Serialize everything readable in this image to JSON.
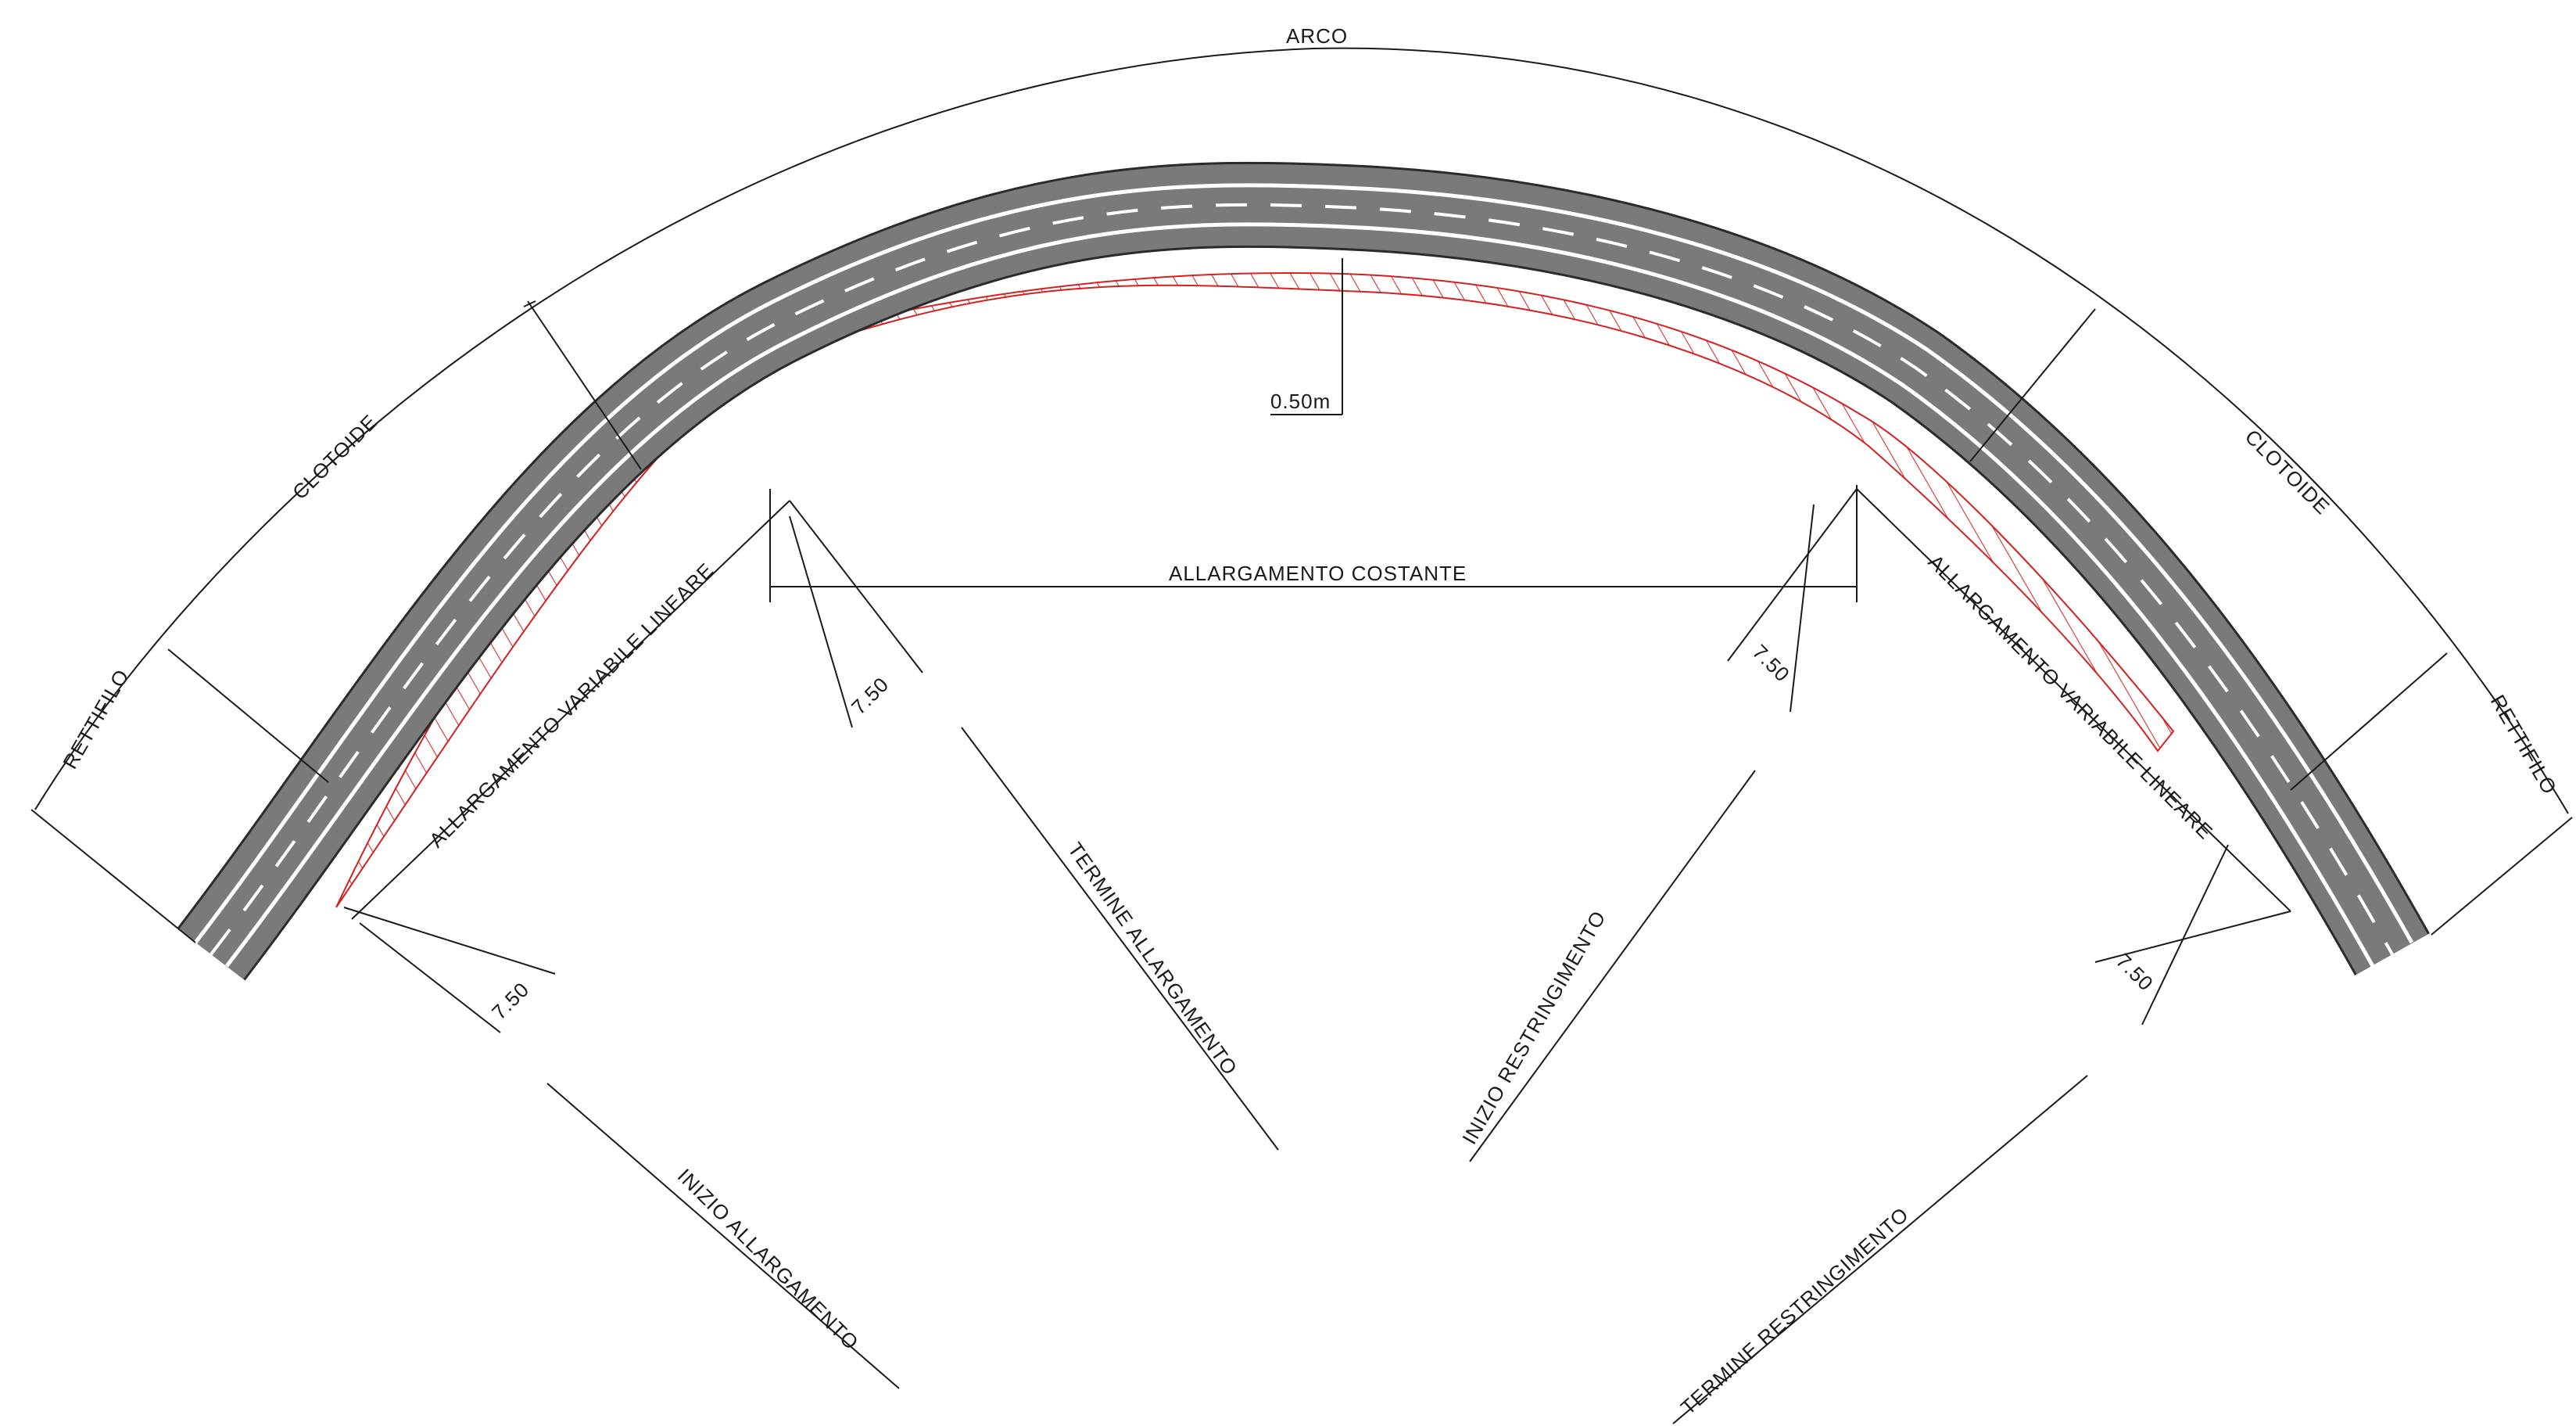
{
  "labels": {
    "arco": "ARCO",
    "clotoide_left": "CLOTOIDE",
    "clotoide_right": "CLOTOIDE",
    "rettifilo_left": "RETTIFILO",
    "rettifilo_right": "RETTIFILO",
    "allargamento_costante": "ALLARGAMENTO  COSTANTE",
    "allargamento_variabile_left": "ALLARGAMENTO  VARIABILE  LINEARE",
    "allargamento_variabile_right": "ALLARGAMENTO  VARIABILE  LINEARE",
    "widening": "0.50m",
    "dim_750_a": "7.50",
    "dim_750_b": "7.50",
    "dim_750_c": "7.50",
    "dim_750_d": "7.50",
    "inizio_allargamento": "INIZIO  ALLARGAMENTO",
    "termine_allargamento": "TERMINE  ALLARGAMENTO",
    "inizio_restringimento": "INIZIO  RESTRINGIMENTO",
    "termine_restringimento": "TERMINE  RESTRINGIMENTO"
  },
  "colors": {
    "asphalt": "#7a7a7a",
    "edge": "#2b2b2b",
    "marking": "#ffffff",
    "hatch": "#d42020",
    "line": "#1a1a1a"
  }
}
